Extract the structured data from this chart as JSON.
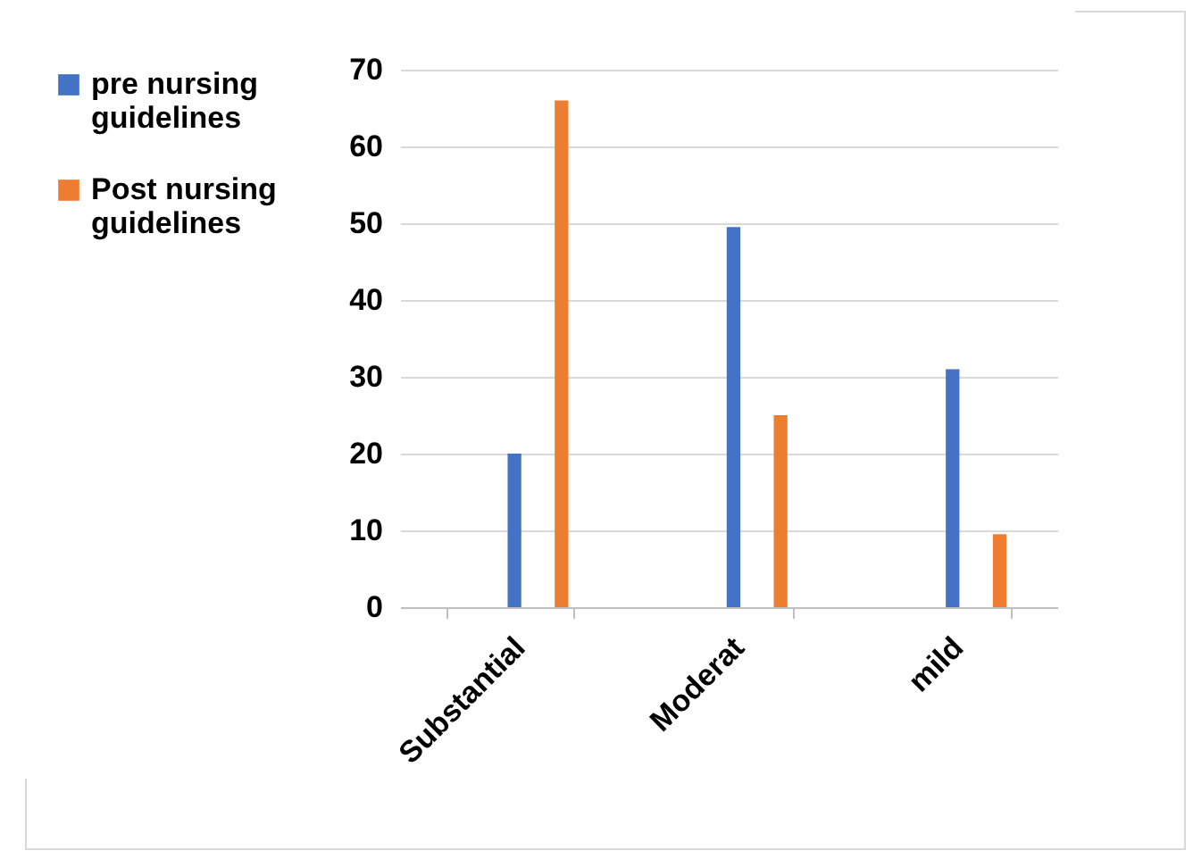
{
  "chart_data": {
    "type": "bar",
    "categories": [
      "Substantial",
      "Moderat",
      "mild"
    ],
    "series": [
      {
        "name": "pre nursing guidelines",
        "color": "#4472c4",
        "values": [
          20,
          49.5,
          31
        ]
      },
      {
        "name": "Post nursing guidelines",
        "color": "#ed7d31",
        "values": [
          66,
          25,
          9.5
        ]
      }
    ],
    "ylim": [
      0,
      70
    ],
    "yticks": [
      0,
      10,
      20,
      30,
      40,
      50,
      60,
      70
    ],
    "grid": "y",
    "legend": "left"
  }
}
